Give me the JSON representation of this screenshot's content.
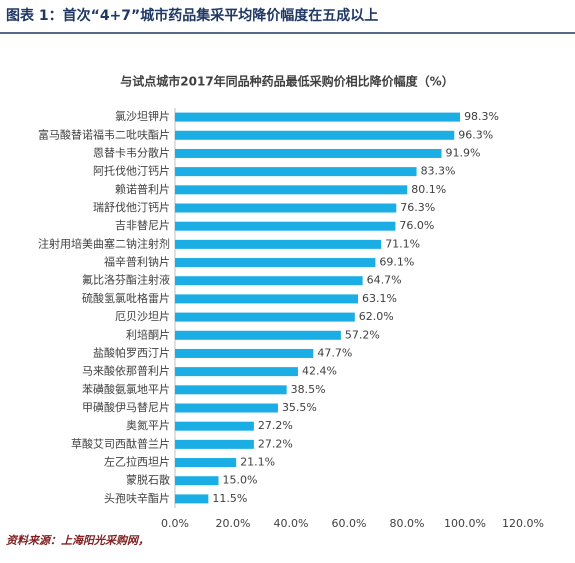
{
  "header": {
    "title": "图表 1：首次“4+7”城市药品集采平均降价幅度在五成以上"
  },
  "chart_data": {
    "type": "bar",
    "orientation": "horizontal",
    "title": "与试点城市2017年同品种药品最低采购价相比降价幅度（%）",
    "categories": [
      "氯沙坦钾片",
      "富马酸替诺福韦二吡呋酯片",
      "恩替卡韦分散片",
      "阿托伐他汀钙片",
      "赖诺普利片",
      "瑞舒伐他汀钙片",
      "吉非替尼片",
      "注射用培美曲塞二钠注射剂",
      "福辛普利钠片",
      "氟比洛芬酯注射液",
      "硫酸氢氯吡格雷片",
      "厄贝沙坦片",
      "利培酮片",
      "盐酸帕罗西汀片",
      "马来酸依那普利片",
      "苯磺酸氨氯地平片",
      "甲磺酸伊马替尼片",
      "奥氮平片",
      "草酸艾司西酞普兰片",
      "左乙拉西坦片",
      "蒙脱石散",
      "头孢呋辛酯片"
    ],
    "values": [
      98.3,
      96.3,
      91.9,
      83.3,
      80.1,
      76.3,
      76.0,
      71.1,
      69.1,
      64.7,
      63.1,
      62.0,
      57.2,
      47.7,
      42.4,
      38.5,
      35.5,
      27.2,
      27.2,
      21.1,
      15.0,
      11.5
    ],
    "value_labels": [
      "98.3%",
      "96.3%",
      "91.9%",
      "83.3%",
      "80.1%",
      "76.3%",
      "76.0%",
      "71.1%",
      "69.1%",
      "64.7%",
      "63.1%",
      "62.0%",
      "57.2%",
      "47.7%",
      "42.4%",
      "38.5%",
      "35.5%",
      "27.2%",
      "27.2%",
      "21.1%",
      "15.0%",
      "11.5%"
    ],
    "color": "#1aaee5",
    "xlim": [
      0,
      120
    ],
    "xticks": [
      {
        "value": 0,
        "label": "0.0%"
      },
      {
        "value": 20,
        "label": "20.0%"
      },
      {
        "value": 40,
        "label": "40.0%"
      },
      {
        "value": 60,
        "label": "60.0%"
      },
      {
        "value": 80,
        "label": "80.0%"
      },
      {
        "value": 100,
        "label": "100.0%"
      },
      {
        "value": 120,
        "label": "120.0%"
      }
    ],
    "grid": false
  },
  "footer": {
    "source": "资料来源：上海阳光采购网，"
  }
}
